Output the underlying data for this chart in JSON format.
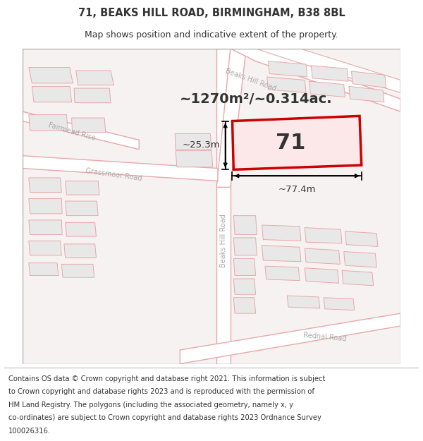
{
  "title_line1": "71, BEAKS HILL ROAD, BIRMINGHAM, B38 8BL",
  "title_line2": "Map shows position and indicative extent of the property.",
  "footer_lines": [
    "Contains OS data © Crown copyright and database right 2021. This information is subject",
    "to Crown copyright and database rights 2023 and is reproduced with the permission of",
    "HM Land Registry. The polygons (including the associated geometry, namely x, y",
    "co-ordinates) are subject to Crown copyright and database rights 2023 Ordnance Survey",
    "100026316."
  ],
  "map_bg": "#f7f2f2",
  "road_color": "#e8a8a8",
  "road_fill": "#ffffff",
  "block_color": "#e8a8a8",
  "block_fill": "#e8e8e8",
  "highlight_color": "#cc0000",
  "highlight_fill": "#fce8e8",
  "text_color": "#333333",
  "road_text_color": "#aaaaaa",
  "border_color": "#cccccc",
  "area_label": "~1270m²/~0.314ac.",
  "width_label": "~77.4m",
  "height_label": "~25.3m",
  "parcel_number": "71",
  "title_fontsize": 10.5,
  "subtitle_fontsize": 9,
  "footer_fontsize": 7.2,
  "area_label_fontsize": 14,
  "parcel_fontsize": 22,
  "meas_fontsize": 9.5,
  "road_label_fontsize": 7
}
